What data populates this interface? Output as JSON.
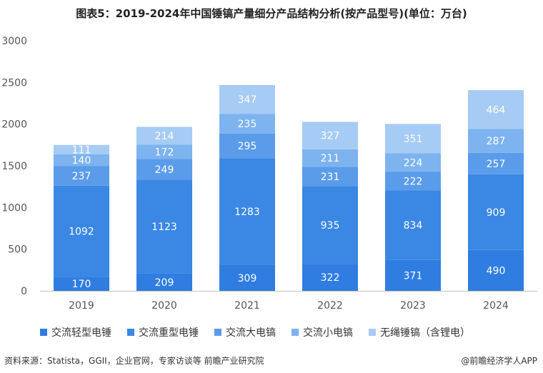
{
  "title": "图表5：2019-2024年中国锤镐产量细分产品结构分析(按产品型号)(单位：万台)",
  "source": "资料来源：Statista，GGII，企业官网，专家访谈等 前瞻产业研究院",
  "credit": "@前瞻经济学人APP",
  "colors": [
    "#2f7de1",
    "#3a87e4",
    "#5a9cea",
    "#7db3ef",
    "#a6cbf5"
  ],
  "chart_data": {
    "type": "bar",
    "stacked": true,
    "categories": [
      "2019",
      "2020",
      "2021",
      "2022",
      "2023",
      "2024"
    ],
    "ylim": [
      0,
      3000
    ],
    "yticks": [
      0,
      500,
      1000,
      1500,
      2000,
      2500,
      3000
    ],
    "grid": false,
    "legend_position": "bottom",
    "series": [
      {
        "name": "交流轻型电锤",
        "values": [
          170,
          209,
          309,
          322,
          371,
          490
        ]
      },
      {
        "name": "交流重型电锤",
        "values": [
          1092,
          1123,
          1283,
          935,
          834,
          909
        ]
      },
      {
        "name": "交流大电镐",
        "values": [
          237,
          249,
          295,
          231,
          222,
          257
        ]
      },
      {
        "name": "交流小电镐",
        "values": [
          140,
          172,
          235,
          211,
          224,
          287
        ]
      },
      {
        "name": "无绳锤镐（含锂电）",
        "values": [
          111,
          214,
          347,
          327,
          351,
          464
        ]
      }
    ]
  }
}
